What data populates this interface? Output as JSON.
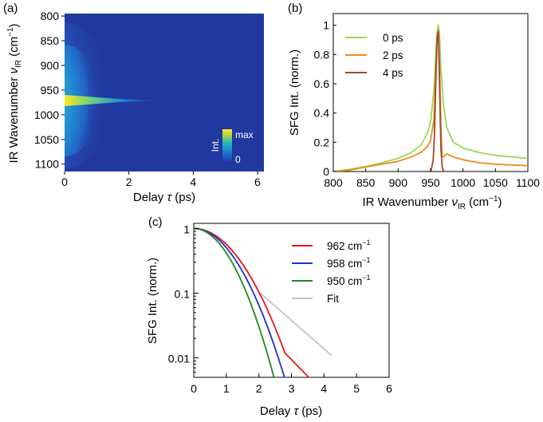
{
  "chart_data": [
    {
      "panel": "(a)",
      "type": "heatmap",
      "xlabel_main": "Delay ",
      "xlabel_sym": "τ",
      "xlabel_unit": " (ps)",
      "ylabel_main": "IR Wavenumber ",
      "ylabel_sym": "ν",
      "ylabel_sub": "IR",
      "ylabel_unit_pre": " (cm",
      "ylabel_unit_exp": "−1",
      "ylabel_unit_post": ")",
      "xlim": [
        0,
        6.2
      ],
      "ylim": [
        1115,
        795
      ],
      "xticks": [
        "0",
        "2",
        "4",
        "6"
      ],
      "xtick_vals": [
        0,
        2,
        4,
        6
      ],
      "yticks": [
        "800",
        "850",
        "900",
        "950",
        "1000",
        "1050",
        "1100"
      ],
      "ytick_vals": [
        800,
        850,
        900,
        950,
        1000,
        1050,
        1100
      ],
      "peak_wavenumber": 962,
      "colorbar": {
        "label": "Int.",
        "max_label": "max",
        "min_label": "0",
        "colors": [
          "#1f2a85",
          "#1e78d4",
          "#22b8b0",
          "#d9d82a",
          "#fde725"
        ]
      }
    },
    {
      "panel": "(b)",
      "type": "line",
      "xlabel_main": "IR Wavenumber ",
      "xlabel_sym": "ν",
      "xlabel_sub": "IR",
      "xlabel_unit": " (cm",
      "xlabel_exp": "−1",
      "xlabel_post": ")",
      "ylabel": "SFG Int. (norm.)",
      "xlim": [
        800,
        1100
      ],
      "ylim": [
        0,
        1.08
      ],
      "xticks": [
        "800",
        "850",
        "900",
        "950",
        "1000",
        "1050",
        "1100"
      ],
      "xtick_vals": [
        800,
        850,
        900,
        950,
        1000,
        1050,
        1100
      ],
      "yticks": [
        "0",
        "0.2",
        "0.4",
        "0.6",
        "0.8",
        "1"
      ],
      "ytick_vals": [
        0,
        0.2,
        0.4,
        0.6,
        0.8,
        1
      ],
      "series": [
        {
          "name": "0 ps",
          "color": "#9ed55a",
          "x": [
            800,
            825,
            850,
            875,
            900,
            920,
            935,
            945,
            950,
            955,
            958,
            960,
            962,
            964,
            966,
            970,
            975,
            985,
            1000,
            1025,
            1050,
            1075,
            1100
          ],
          "y": [
            0.0,
            0.015,
            0.035,
            0.06,
            0.09,
            0.13,
            0.18,
            0.26,
            0.34,
            0.55,
            0.8,
            0.95,
            1.0,
            0.92,
            0.7,
            0.45,
            0.3,
            0.2,
            0.16,
            0.13,
            0.11,
            0.1,
            0.09
          ]
        },
        {
          "name": "2 ps",
          "color": "#ef8a1b",
          "x": [
            800,
            825,
            850,
            875,
            900,
            920,
            935,
            945,
            950,
            955,
            958,
            960,
            962,
            964,
            966,
            968,
            970,
            975,
            985,
            1000,
            1025,
            1050,
            1075,
            1100
          ],
          "y": [
            0.0,
            0.01,
            0.03,
            0.05,
            0.07,
            0.1,
            0.13,
            0.17,
            0.21,
            0.35,
            0.7,
            0.92,
            0.97,
            0.7,
            0.3,
            0.1,
            0.1,
            0.12,
            0.1,
            0.08,
            0.06,
            0.05,
            0.045,
            0.04
          ]
        },
        {
          "name": "4 ps",
          "color": "#9c4a2e",
          "x": [
            945,
            950,
            952,
            954,
            956,
            958,
            960,
            962,
            964,
            966,
            968,
            970,
            975
          ],
          "y": [
            0.0,
            0.0,
            0.03,
            0.08,
            0.25,
            0.6,
            0.9,
            0.96,
            0.55,
            0.15,
            0.03,
            0.0,
            0.0
          ]
        }
      ]
    },
    {
      "panel": "(c)",
      "type": "line",
      "xlabel_main": "Delay ",
      "xlabel_sym": "τ",
      "xlabel_unit": " (ps)",
      "ylabel": "SFG Int. (norm.)",
      "yscale": "log",
      "xlim": [
        0,
        6
      ],
      "ylim": [
        0.005,
        1.2
      ],
      "xticks": [
        "0",
        "1",
        "2",
        "3",
        "4",
        "5",
        "6"
      ],
      "xtick_vals": [
        0,
        1,
        2,
        3,
        4,
        5,
        6
      ],
      "yticks": [
        "1",
        "0.1",
        "0.01"
      ],
      "ytick_vals": [
        1,
        0.1,
        0.01
      ],
      "series": [
        {
          "name": "962 cm",
          "name_exp": "−1",
          "color": "#e8141b",
          "model": "gauss_exp",
          "sigma": 1.33,
          "t0": 2.8,
          "tau": 0.845,
          "tmax": 3.9
        },
        {
          "name": "958 cm",
          "name_exp": "−1",
          "color": "#1f2fd6",
          "model": "gauss",
          "sigma": 1.21,
          "tmax": 3.12
        },
        {
          "name": "950 cm",
          "name_exp": "−1",
          "color": "#1d8a1d",
          "model": "gauss",
          "sigma": 1.07,
          "tmax": 2.72
        },
        {
          "name": "Fit",
          "color": "#c3c3c3",
          "model": "gauss_exp",
          "sigma": 1.33,
          "t0": 2.0,
          "tau": 0.99,
          "tmax": 4.25
        }
      ]
    }
  ]
}
